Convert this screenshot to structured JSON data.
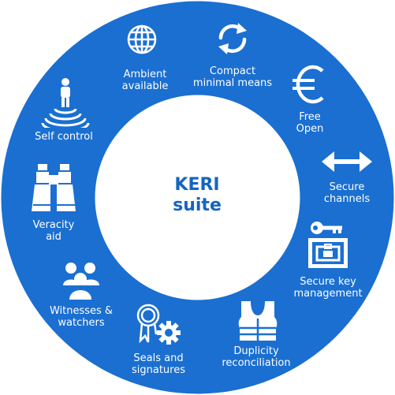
{
  "colors": {
    "ring": "#1a6fd1",
    "center_bg": "#ffffff",
    "text": "#ffffff",
    "title": "#1565c0"
  },
  "center": {
    "line1": "KERI",
    "line2": "suite"
  },
  "items": [
    {
      "icon": "globe-icon",
      "line1": "Ambient",
      "line2": "available"
    },
    {
      "icon": "recycle-arrows-icon",
      "line1": "Compact",
      "line2": "minimal means"
    },
    {
      "icon": "euro-icon",
      "line1": "Free",
      "line2": "Open"
    },
    {
      "icon": "double-arrow-icon",
      "line1": "Secure",
      "line2": "channels"
    },
    {
      "icon": "key-safe-icon",
      "line1": "Secure key",
      "line2": "management"
    },
    {
      "icon": "life-vest-icon",
      "line1": "Duplicity",
      "line2": "reconciliation"
    },
    {
      "icon": "seal-gear-icon",
      "line1": "Seals and",
      "line2": "signatures"
    },
    {
      "icon": "people-group-icon",
      "line1": "Witnesses &",
      "line2": "watchers"
    },
    {
      "icon": "binoculars-icon",
      "line1": "Veracity",
      "line2": "aid"
    },
    {
      "icon": "person-signal-icon",
      "line1": "Self control",
      "line2": ""
    }
  ]
}
